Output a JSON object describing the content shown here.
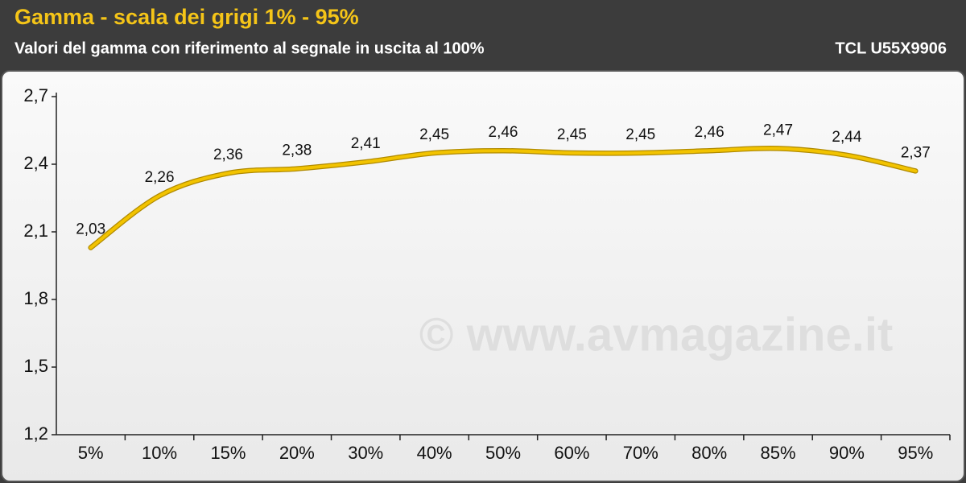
{
  "chart_data": {
    "type": "line",
    "title": "Gamma - scala dei grigi 1% - 95%",
    "subtitle": "Valori del gamma con riferimento al segnale in uscita al 100%",
    "device": "TCL U55X9906",
    "watermark": "© www.avmagazine.it",
    "categories": [
      "5%",
      "10%",
      "15%",
      "20%",
      "30%",
      "40%",
      "50%",
      "60%",
      "70%",
      "80%",
      "85%",
      "90%",
      "95%"
    ],
    "series": [
      {
        "color": "#f2c300",
        "values": [
          2.03,
          2.26,
          2.36,
          2.38,
          2.41,
          2.45,
          2.46,
          2.45,
          2.45,
          2.46,
          2.47,
          2.44,
          2.37
        ],
        "value_labels": [
          "2,03",
          "2,26",
          "2,36",
          "2,38",
          "2,41",
          "2,45",
          "2,46",
          "2,45",
          "2,45",
          "2,46",
          "2,47",
          "2,44",
          "2,37"
        ]
      }
    ],
    "ylim": [
      1.2,
      2.7
    ],
    "yticks": [
      {
        "value": 1.2,
        "label": "1,2"
      },
      {
        "value": 1.5,
        "label": "1,5"
      },
      {
        "value": 1.8,
        "label": "1,8"
      },
      {
        "value": 2.1,
        "label": "2,1"
      },
      {
        "value": 2.4,
        "label": "2,4"
      },
      {
        "value": 2.7,
        "label": "2,7"
      }
    ]
  }
}
